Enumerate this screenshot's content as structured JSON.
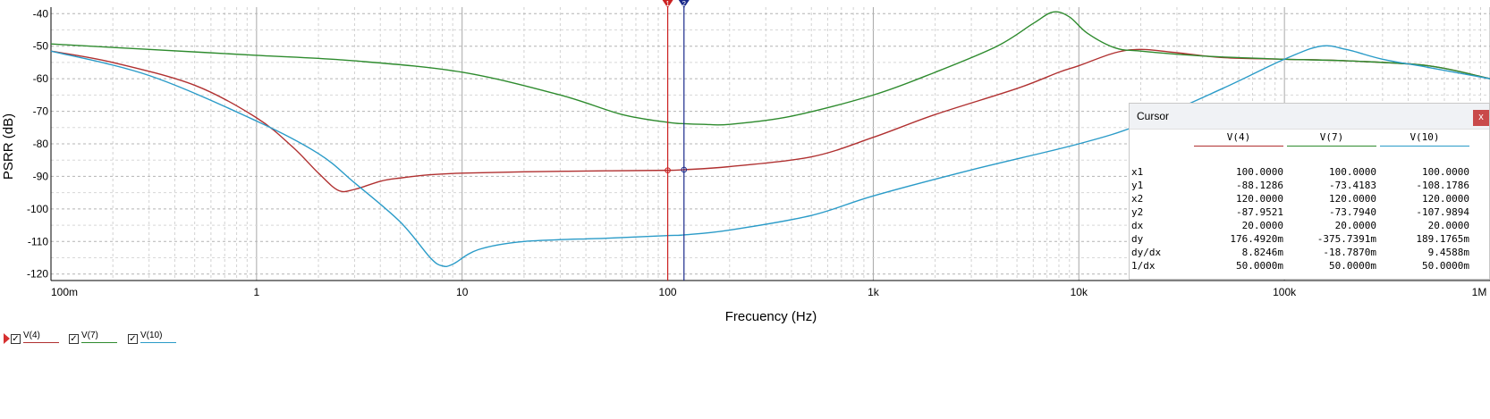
{
  "chart_data": {
    "type": "line",
    "xscale": "log",
    "xlim": [
      0.1,
      1000000
    ],
    "ylim": [
      -122,
      -38
    ],
    "grid": true,
    "xlabel": "Frecuency (Hz)",
    "ylabel": "PSRR (dB)",
    "x_ticks": [
      {
        "value": 0.1,
        "label": "100m"
      },
      {
        "value": 1,
        "label": "1"
      },
      {
        "value": 10,
        "label": "10"
      },
      {
        "value": 100,
        "label": "100"
      },
      {
        "value": 1000,
        "label": "1k"
      },
      {
        "value": 10000,
        "label": "10k"
      },
      {
        "value": 100000,
        "label": "100k"
      },
      {
        "value": 1000000,
        "label": "1M"
      }
    ],
    "y_ticks": [
      {
        "value": -40,
        "label": "-40"
      },
      {
        "value": -50,
        "label": "-50"
      },
      {
        "value": -60,
        "label": "-60"
      },
      {
        "value": -70,
        "label": "-70"
      },
      {
        "value": -80,
        "label": "-80"
      },
      {
        "value": -90,
        "label": "-90"
      },
      {
        "value": -100,
        "label": "-100"
      },
      {
        "value": -110,
        "label": "-110"
      },
      {
        "value": -120,
        "label": "-120"
      }
    ],
    "series": [
      {
        "name": "V(4)",
        "color": "#b03030",
        "x": [
          0.1,
          0.2,
          0.5,
          1,
          1.5,
          2,
          2.5,
          3,
          4,
          5,
          7,
          10,
          20,
          50,
          100,
          120,
          200,
          500,
          1000,
          2000,
          5000,
          8000,
          10000,
          15000,
          20000,
          30000,
          50000,
          100000,
          200000,
          500000,
          1000000
        ],
        "y": [
          -51.5,
          -55,
          -62,
          -72,
          -81,
          -89,
          -94.3,
          -94,
          -91.5,
          -90.5,
          -89.5,
          -89,
          -88.6,
          -88.3,
          -88.13,
          -87.95,
          -87,
          -84,
          -78,
          -71,
          -63,
          -58,
          -56,
          -52,
          -51,
          -52,
          -53.5,
          -54,
          -54.5,
          -56,
          -60
        ]
      },
      {
        "name": "V(7)",
        "color": "#2e8b2e",
        "x": [
          0.1,
          0.3,
          1,
          3,
          10,
          30,
          60,
          100,
          120,
          150,
          200,
          400,
          1000,
          2000,
          4000,
          6000,
          7500,
          9000,
          11000,
          15000,
          20000,
          40000,
          100000,
          200000,
          500000,
          1000000
        ],
        "y": [
          -49.3,
          -51,
          -52.8,
          -54.5,
          -58,
          -65,
          -71,
          -73.4,
          -73.8,
          -74,
          -74,
          -71.5,
          -65,
          -58,
          -50,
          -43,
          -39.5,
          -41,
          -46,
          -50.5,
          -51.5,
          -53,
          -54,
          -54.5,
          -56,
          -60
        ]
      },
      {
        "name": "V(10)",
        "color": "#2a9bc8",
        "x": [
          0.1,
          0.3,
          1,
          2,
          3,
          5,
          7,
          8,
          9,
          12,
          20,
          50,
          100,
          120,
          200,
          500,
          1000,
          3000,
          10000,
          20000,
          50000,
          100000,
          150000,
          200000,
          300000,
          500000,
          1000000
        ],
        "y": [
          -51.5,
          -59,
          -73,
          -83,
          -92,
          -104,
          -115,
          -117.5,
          -117,
          -112.5,
          -110,
          -109,
          -108.18,
          -107.99,
          -106.5,
          -102,
          -96,
          -88,
          -80,
          -74,
          -63,
          -54,
          -50,
          -51,
          -54,
          -56.5,
          -60
        ]
      }
    ],
    "cursors": [
      {
        "label": "1",
        "x": 100,
        "color": "#cc2222"
      },
      {
        "label": "2",
        "x": 120,
        "color": "#1a2a8a"
      }
    ]
  },
  "cursor_panel": {
    "title": "Cursor",
    "close_label": "x",
    "columns": [
      {
        "name": "V(4)",
        "color": "#b03030"
      },
      {
        "name": "V(7)",
        "color": "#2e8b2e"
      },
      {
        "name": "V(10)",
        "color": "#2a9bc8"
      }
    ],
    "rows": [
      {
        "label": "x1",
        "values": [
          "100.0000",
          "100.0000",
          "100.0000"
        ]
      },
      {
        "label": "y1",
        "values": [
          "-88.1286",
          "-73.4183",
          "-108.1786"
        ]
      },
      {
        "label": "x2",
        "values": [
          "120.0000",
          "120.0000",
          "120.0000"
        ]
      },
      {
        "label": "y2",
        "values": [
          "-87.9521",
          "-73.7940",
          "-107.9894"
        ]
      },
      {
        "label": "dx",
        "values": [
          "20.0000",
          "20.0000",
          "20.0000"
        ]
      },
      {
        "label": "dy",
        "values": [
          "176.4920m",
          "-375.7391m",
          "189.1765m"
        ]
      },
      {
        "label": "dy/dx",
        "values": [
          "8.8246m",
          "-18.7870m",
          "9.4588m"
        ]
      },
      {
        "label": "1/dx",
        "values": [
          "50.0000m",
          "50.0000m",
          "50.0000m"
        ]
      }
    ]
  },
  "legend": [
    {
      "name": "V(4)",
      "color": "#b03030",
      "checked": true
    },
    {
      "name": "V(7)",
      "color": "#2e8b2e",
      "checked": true
    },
    {
      "name": "V(10)",
      "color": "#2a9bc8",
      "checked": true
    }
  ]
}
